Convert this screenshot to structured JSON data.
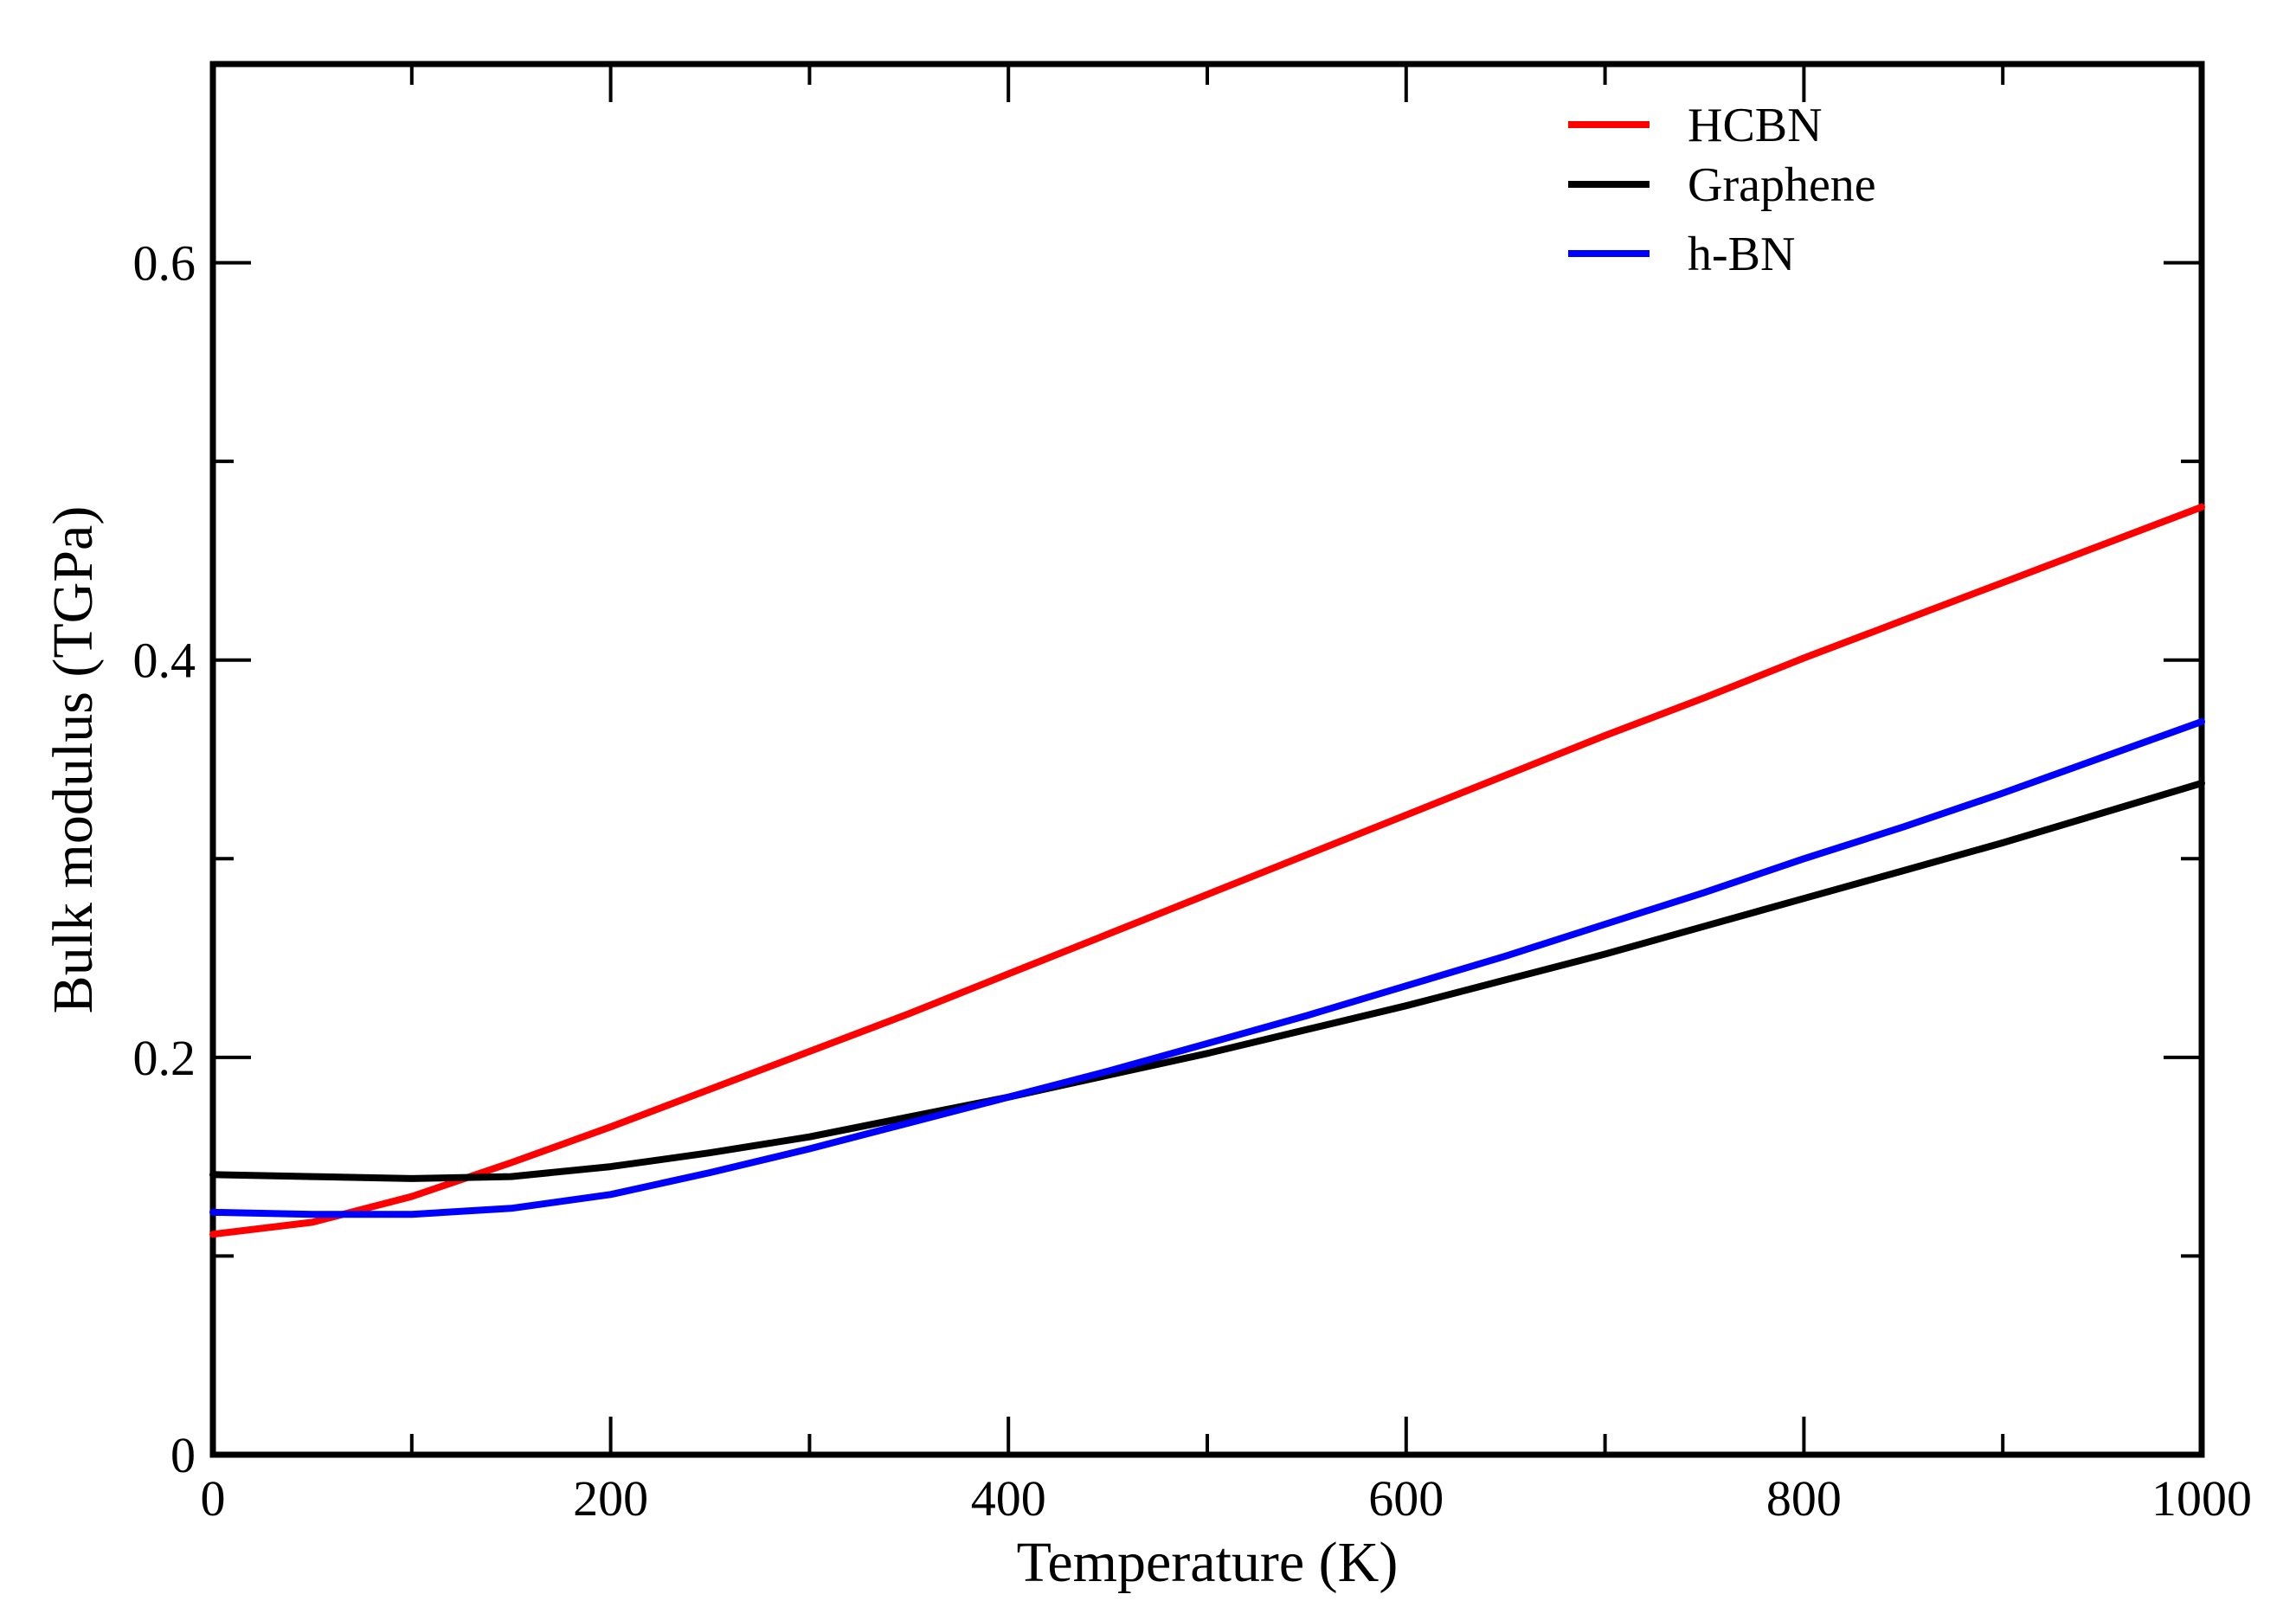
{
  "chart_data": {
    "type": "line",
    "title": "",
    "xlabel": "Temperature (K)",
    "ylabel": "Bulk modulus (TGPa)",
    "xlim": [
      0,
      1000
    ],
    "ylim": [
      0,
      0.7
    ],
    "xticks": [
      0,
      200,
      400,
      600,
      800,
      1000
    ],
    "xtick_labels": [
      "0",
      "200",
      "400",
      "600",
      "800",
      "1000"
    ],
    "xminor": [
      100,
      300,
      500,
      700,
      900
    ],
    "yticks": [
      0,
      0.2,
      0.4,
      0.6
    ],
    "ytick_labels": [
      "0",
      "0.2",
      "0.4",
      "0.6"
    ],
    "yminor": [
      0.1,
      0.3,
      0.5
    ],
    "grid": false,
    "legend_position": "top-right",
    "x": [
      0,
      50,
      100,
      150,
      200,
      250,
      300,
      350,
      400,
      450,
      500,
      550,
      600,
      650,
      700,
      750,
      800,
      850,
      900,
      950,
      1000
    ],
    "series": [
      {
        "name": "HCBN",
        "color": "#ff0000",
        "values": [
          0.111,
          0.117,
          0.13,
          0.147,
          0.165,
          0.184,
          0.203,
          0.222,
          0.242,
          0.262,
          0.282,
          0.302,
          0.322,
          0.342,
          0.362,
          0.381,
          0.401,
          0.42,
          0.439,
          0.458,
          0.477
        ]
      },
      {
        "name": "Graphene",
        "color": "#000000",
        "values": [
          0.141,
          0.14,
          0.139,
          0.14,
          0.145,
          0.152,
          0.16,
          0.17,
          0.18,
          0.191,
          0.202,
          0.214,
          0.226,
          0.239,
          0.252,
          0.266,
          0.28,
          0.294,
          0.308,
          0.323,
          0.338
        ]
      },
      {
        "name": "h-BN",
        "color": "#0000ff",
        "values": [
          0.122,
          0.121,
          0.121,
          0.124,
          0.131,
          0.142,
          0.154,
          0.167,
          0.18,
          0.193,
          0.207,
          0.221,
          0.236,
          0.251,
          0.267,
          0.283,
          0.3,
          0.316,
          0.333,
          0.351,
          0.369
        ]
      }
    ]
  }
}
